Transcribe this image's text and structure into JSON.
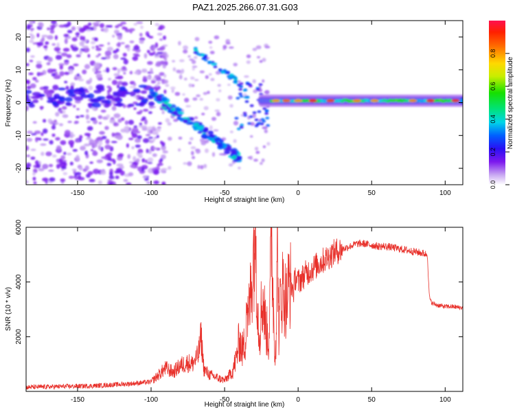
{
  "title": "PAZ1.2025.266.07.31.G03",
  "colors": {
    "snr_line": "#e8302a"
  },
  "chart_data": [
    {
      "type": "heatmap",
      "xlabel": "Height of straight line (km)",
      "ylabel": "Frequency (Hz)",
      "xlim": [
        -185,
        112
      ],
      "ylim": [
        -25,
        25
      ],
      "xticks": [
        -150,
        -100,
        -50,
        0,
        50,
        100
      ],
      "yticks": [
        -20,
        -10,
        0,
        10,
        20
      ],
      "colorbar": {
        "label": "Normalized spectral amplitude",
        "range": [
          0,
          1
        ],
        "ticks": [
          "0.0",
          "0.2",
          "0.4",
          "0.6",
          "0.8"
        ]
      },
      "features": [
        {
          "name": "carrier",
          "x_range": [
            -20,
            112
          ],
          "frequency": 0.6,
          "amplitude": 0.55
        },
        {
          "name": "descending_branch",
          "x_range": [
            -100,
            -40
          ],
          "frequency_range": [
            3,
            -17
          ],
          "amplitude": 0.35
        },
        {
          "name": "ascending_branch",
          "x_range": [
            -70,
            -40
          ],
          "frequency_range": [
            16,
            6
          ],
          "amplitude": 0.3
        },
        {
          "name": "noise_region",
          "x_range": [
            -185,
            -95
          ],
          "frequency_range": [
            -25,
            25
          ],
          "amplitude": 0.12
        }
      ]
    },
    {
      "type": "line",
      "xlabel": "Height of straight line (km)",
      "ylabel": "SNR (10 * v/v)",
      "xlim": [
        -185,
        112
      ],
      "ylim": [
        0,
        6000
      ],
      "xticks": [
        -150,
        -100,
        -50,
        0,
        50,
        100
      ],
      "yticks": [
        2000,
        4000,
        6000
      ],
      "series": [
        {
          "x": [
            -185,
            -160,
            -140,
            -120,
            -110,
            -100,
            -95,
            -90,
            -85,
            -80,
            -75,
            -72,
            -68,
            -66,
            -64,
            -60,
            -55,
            -50,
            -45,
            -42,
            -40,
            -38,
            -36,
            -35,
            -34,
            -32,
            -30,
            -29,
            -28,
            -27,
            -26,
            -25,
            -24,
            -22,
            -20,
            -18,
            -16,
            -15,
            -14,
            -13,
            -12,
            -10,
            -8,
            -6,
            -5,
            -3,
            -2,
            0,
            5,
            10,
            15,
            20,
            25,
            30,
            35,
            40,
            45,
            50,
            55,
            60,
            65,
            70,
            75,
            80,
            85,
            88,
            89,
            90,
            92,
            95,
            100,
            105,
            112
          ],
          "y": [
            150,
            180,
            200,
            260,
            300,
            350,
            600,
            850,
            700,
            950,
            1050,
            1000,
            1300,
            2000,
            800,
            600,
            500,
            400,
            700,
            1200,
            1900,
            1500,
            1800,
            3500,
            2500,
            3800,
            5300,
            6000,
            4000,
            2500,
            2200,
            3100,
            3400,
            2400,
            1800,
            5700,
            1500,
            2000,
            5500,
            1900,
            3600,
            3800,
            3200,
            4100,
            3900,
            3700,
            4200,
            4000,
            4300,
            4500,
            4700,
            4900,
            5100,
            5200,
            5300,
            5400,
            5400,
            5350,
            5300,
            5300,
            5250,
            5200,
            5150,
            5100,
            5050,
            5000,
            3600,
            3300,
            3200,
            3150,
            3100,
            3100,
            3050
          ]
        }
      ]
    }
  ]
}
